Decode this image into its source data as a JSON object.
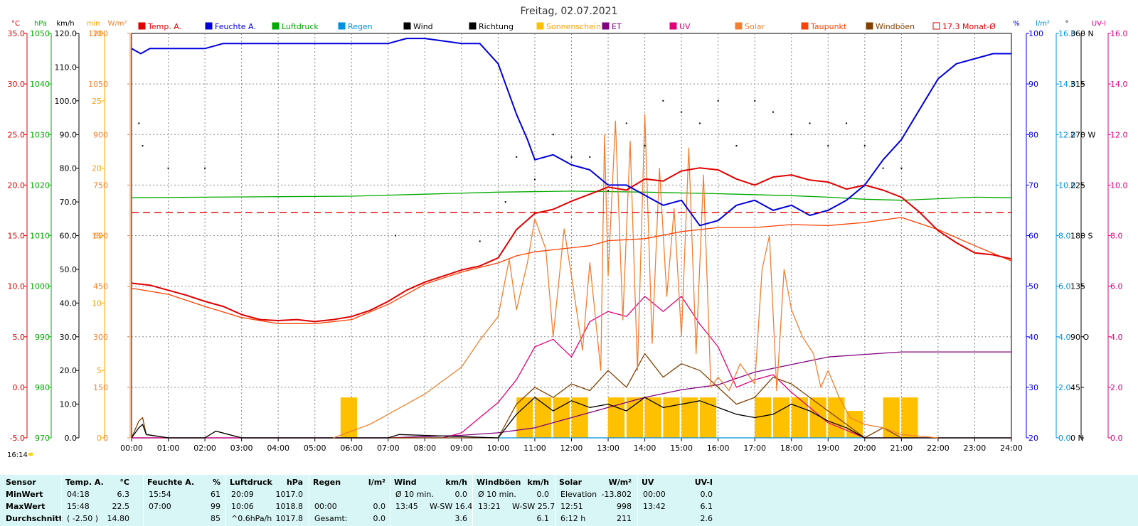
{
  "title": "Freitag, 02.07.2021",
  "time_marker": "16:14",
  "legend": [
    {
      "label": "Temp. A.",
      "color": "#e00000",
      "text_color": "#e00000",
      "filled": true
    },
    {
      "label": "Feuchte A.",
      "color": "#0000dd",
      "text_color": "#0000dd",
      "filled": true
    },
    {
      "label": "Luftdruck",
      "color": "#00aa00",
      "text_color": "#00aa00",
      "filled": true
    },
    {
      "label": "Regen",
      "color": "#0090e0",
      "text_color": "#0090e0",
      "filled": true
    },
    {
      "label": "Wind",
      "color": "#000000",
      "text_color": "#000000",
      "filled": true
    },
    {
      "label": "Richtung",
      "color": "#000000",
      "text_color": "#000000",
      "filled": true
    },
    {
      "label": "Sonnenschein",
      "color": "#ffc000",
      "text_color": "#ffa000",
      "filled": true
    },
    {
      "label": "ET",
      "color": "#800080",
      "text_color": "#800080",
      "filled": true
    },
    {
      "label": "UV",
      "color": "#e0007a",
      "text_color": "#e0007a",
      "filled": true
    },
    {
      "label": "Solar",
      "color": "#f08030",
      "text_color": "#f08030",
      "filled": true
    },
    {
      "label": "Taupunkt",
      "color": "#ff4000",
      "text_color": "#ff4000",
      "filled": true
    },
    {
      "label": "Windböen",
      "color": "#804000",
      "text_color": "#804000",
      "filled": true
    },
    {
      "label": "17.3 Monat-Ø",
      "color": "#e00000",
      "text_color": "#e00000",
      "filled": false
    }
  ],
  "axes": {
    "temp": {
      "unit": "°C",
      "color": "#e00000",
      "ticks": [
        "35.0",
        "30.0",
        "25.0",
        "20.0",
        "15.0",
        "10.0",
        "5.0",
        "0.0",
        "-5.0"
      ]
    },
    "pressure": {
      "unit": "hPa",
      "color": "#00aa00",
      "ticks": [
        "1050",
        "1040",
        "1030",
        "1020",
        "1010",
        "1000",
        "990",
        "980",
        "970"
      ]
    },
    "wind": {
      "unit": "km/h",
      "color": "#000000",
      "ticks": [
        "120.0",
        "110.0",
        "100.0",
        "90.0",
        "80.0",
        "70.0",
        "60.0",
        "50.0",
        "40.0",
        "30.0",
        "20.0",
        "10.0",
        "0.0"
      ]
    },
    "minutes": {
      "unit": "min",
      "color": "#ffa000",
      "ticks": [
        "30",
        "25",
        "20",
        "15",
        "10",
        "5",
        "0"
      ]
    },
    "solar": {
      "unit": "W/m²",
      "color": "#f08030",
      "ticks": [
        "1200",
        "1050",
        "900",
        "750",
        "600",
        "450",
        "300",
        "150",
        "0"
      ]
    },
    "humidity": {
      "unit": "%",
      "color": "#0000dd",
      "ticks": [
        "100",
        "90",
        "80",
        "70",
        "60",
        "50",
        "40",
        "30",
        "20"
      ]
    },
    "rain": {
      "unit": "l/m²",
      "color": "#0090e0",
      "ticks": [
        "16.0",
        "14.0",
        "12.0",
        "10.0",
        "8.0",
        "6.0",
        "4.0",
        "2.0",
        "0.0"
      ]
    },
    "direction": {
      "unit": "°",
      "color": "#000000",
      "ticks": [
        "360 N",
        "315",
        "270 W",
        "225",
        "180 S",
        "135",
        "90 O",
        "45",
        "0 N"
      ]
    },
    "uvi": {
      "unit": "UV-I",
      "color": "#e0007a",
      "ticks": [
        "16.0",
        "14.0",
        "12.0",
        "10.0",
        "8.0",
        "6.0",
        "4.0",
        "2.0",
        "0.0"
      ]
    },
    "time": {
      "ticks": [
        "00:00",
        "01:00",
        "02:00",
        "03:00",
        "04:00",
        "05:00",
        "06:00",
        "07:00",
        "08:00",
        "09:00",
        "10:00",
        "11:00",
        "12:00",
        "13:00",
        "14:00",
        "15:00",
        "16:00",
        "17:00",
        "18:00",
        "19:00",
        "20:00",
        "21:00",
        "22:00",
        "23:00",
        "24:00"
      ]
    }
  },
  "chart_data": {
    "type": "line",
    "title": "Freitag, 02.07.2021",
    "x_unit": "hour of day",
    "xlim": [
      0,
      24
    ],
    "series": [
      {
        "name": "Temp. A.",
        "unit": "°C",
        "color": "#e00000",
        "x": [
          0,
          0.5,
          1,
          1.5,
          2,
          2.5,
          3,
          3.5,
          4,
          4.5,
          5,
          5.5,
          6,
          6.5,
          7,
          7.5,
          8,
          8.5,
          9,
          9.5,
          10,
          10.5,
          11,
          11.5,
          12,
          12.5,
          13,
          13.5,
          14,
          14.5,
          15,
          15.5,
          16,
          16.5,
          17,
          17.5,
          18,
          18.5,
          19,
          19.5,
          20,
          20.5,
          21,
          21.5,
          22,
          22.5,
          23,
          23.5,
          24
        ],
        "y": [
          10.3,
          10.1,
          9.6,
          9.1,
          8.5,
          8.0,
          7.2,
          6.7,
          6.6,
          6.7,
          6.5,
          6.7,
          7.0,
          7.6,
          8.5,
          9.6,
          10.4,
          11.0,
          11.6,
          12.0,
          12.8,
          15.6,
          17.2,
          17.6,
          18.4,
          19.1,
          19.8,
          19.5,
          20.6,
          20.4,
          21.4,
          21.7,
          21.5,
          20.6,
          20.0,
          20.8,
          21.0,
          20.5,
          20.3,
          19.6,
          20.0,
          19.5,
          18.8,
          17.3,
          15.5,
          14.3,
          13.3,
          13.1,
          12.7
        ]
      },
      {
        "name": "Taupunkt",
        "unit": "°C",
        "color": "#ff4000",
        "x": [
          0,
          1,
          2,
          3,
          4,
          5,
          6,
          7,
          8,
          9,
          10,
          10.5,
          11,
          11.5,
          12,
          12.5,
          13,
          14,
          15,
          16,
          17,
          18,
          19,
          20,
          21,
          22,
          23,
          24
        ],
        "y": [
          9.8,
          9.2,
          8.0,
          6.9,
          6.3,
          6.3,
          6.7,
          8.2,
          10.2,
          11.4,
          12.3,
          13.0,
          13.4,
          13.6,
          13.8,
          14.0,
          14.5,
          14.7,
          15.4,
          15.8,
          15.8,
          16.1,
          16.0,
          16.3,
          16.8,
          15.6,
          14.0,
          12.5
        ]
      },
      {
        "name": "Feuchte A.",
        "unit": "%",
        "color": "#0000dd",
        "x": [
          0,
          0.25,
          0.5,
          1,
          1.5,
          2,
          2.5,
          3,
          4,
          5,
          6,
          7,
          7.5,
          8,
          9,
          9.5,
          10,
          10.5,
          10.8,
          11,
          11.5,
          12,
          12.5,
          13,
          13.5,
          14,
          14.5,
          15,
          15.5,
          16,
          16.5,
          17,
          17.5,
          18,
          18.5,
          19,
          19.5,
          20,
          20.5,
          21,
          21.5,
          22,
          22.5,
          23,
          23.5,
          24
        ],
        "y": [
          97,
          96,
          97,
          97,
          97,
          97,
          98,
          98,
          98,
          98,
          98,
          98,
          99,
          99,
          98,
          98,
          94,
          84,
          79,
          75,
          76,
          74,
          73,
          70,
          70,
          68,
          66,
          67,
          62,
          63,
          66,
          67,
          65,
          66,
          64,
          65,
          67,
          70,
          75,
          79,
          85,
          91,
          94,
          95,
          96,
          96
        ]
      },
      {
        "name": "Luftdruck",
        "unit": "hPa",
        "color": "#00aa00",
        "x": [
          0,
          2,
          4,
          6,
          8,
          10,
          12,
          14,
          16,
          18,
          19,
          20,
          21,
          22,
          23,
          24
        ],
        "y": [
          1017.5,
          1017.6,
          1017.7,
          1017.8,
          1018.2,
          1018.6,
          1018.8,
          1018.6,
          1018.3,
          1017.9,
          1017.6,
          1017.2,
          1017.0,
          1017.3,
          1017.6,
          1017.5
        ]
      },
      {
        "name": "Solar",
        "unit": "W/m²",
        "color": "#f08030",
        "x": [
          5.5,
          6,
          6.5,
          7,
          7.5,
          8,
          8.5,
          9,
          9.5,
          10,
          10.3,
          10.5,
          10.8,
          11,
          11.3,
          11.5,
          11.8,
          12,
          12.3,
          12.5,
          12.8,
          12.9,
          13,
          13.2,
          13.4,
          13.6,
          13.8,
          14,
          14.2,
          14.4,
          14.6,
          14.8,
          15,
          15.2,
          15.4,
          15.6,
          15.8,
          16,
          16.3,
          16.6,
          17,
          17.2,
          17.4,
          17.6,
          17.8,
          18,
          18.3,
          18.6,
          18.8,
          19,
          19.3,
          19.6,
          20,
          20.5,
          21,
          21.5,
          22
        ],
        "y": [
          0,
          20,
          40,
          70,
          100,
          130,
          170,
          210,
          290,
          360,
          530,
          380,
          520,
          650,
          560,
          300,
          620,
          480,
          260,
          520,
          200,
          900,
          480,
          940,
          350,
          880,
          200,
          960,
          280,
          800,
          420,
          680,
          300,
          860,
          250,
          780,
          150,
          180,
          140,
          220,
          160,
          500,
          600,
          140,
          500,
          380,
          300,
          250,
          150,
          200,
          120,
          60,
          40,
          30,
          10,
          5,
          0
        ]
      },
      {
        "name": "UV",
        "unit": "UV-I",
        "color": "#e0007a",
        "x": [
          0,
          8.5,
          9,
          9.5,
          10,
          10.5,
          11,
          11.5,
          12,
          12.5,
          13,
          13.5,
          14,
          14.5,
          15,
          15.5,
          16,
          16.5,
          17,
          17.5,
          18,
          18.5,
          19,
          19.5,
          20,
          24
        ],
        "y": [
          0,
          0,
          0.2,
          0.8,
          1.4,
          2.3,
          3.6,
          3.9,
          3.2,
          4.6,
          5.0,
          4.8,
          5.6,
          5.0,
          5.6,
          4.5,
          3.6,
          2.0,
          2.3,
          2.5,
          1.8,
          1.2,
          0.6,
          0.3,
          0,
          0
        ]
      },
      {
        "name": "Wind",
        "unit": "km/h",
        "color": "#000000",
        "x": [
          0,
          0.2,
          0.3,
          0.4,
          1,
          2,
          2.3,
          3,
          7,
          7.3,
          10,
          10.5,
          11,
          11.5,
          12,
          12.5,
          13,
          13.5,
          14,
          14.5,
          15,
          15.5,
          16,
          16.5,
          17,
          17.5,
          18,
          18.5,
          19,
          19.5,
          20,
          24
        ],
        "y": [
          0,
          3,
          4,
          1,
          0,
          0,
          2,
          0,
          0,
          1,
          0,
          7,
          12,
          8,
          11,
          9,
          10,
          8,
          12,
          9,
          10,
          11,
          9,
          7,
          6,
          7,
          10,
          8,
          5,
          3,
          0,
          0
        ]
      },
      {
        "name": "Windböen",
        "unit": "km/h",
        "color": "#804000",
        "x": [
          0,
          0.2,
          0.3,
          0.4,
          1,
          2,
          2.3,
          3,
          10,
          10.5,
          11,
          11.5,
          12,
          12.5,
          13,
          13.5,
          14,
          14.5,
          15,
          15.5,
          16,
          16.5,
          17,
          17.5,
          18,
          18.5,
          19,
          19.5,
          20,
          20.5,
          21,
          24
        ],
        "y": [
          0,
          5,
          6,
          1,
          0,
          0,
          2,
          0,
          0,
          10,
          15,
          12,
          16,
          14,
          20,
          15,
          25,
          18,
          22,
          20,
          15,
          10,
          12,
          18,
          16,
          12,
          8,
          4,
          0,
          3,
          0,
          0
        ]
      },
      {
        "name": "ET",
        "unit": "l/m²",
        "color": "#800080",
        "x": [
          0,
          7,
          8,
          9,
          10,
          11,
          12,
          13,
          14,
          15,
          16,
          17,
          18,
          19,
          20,
          21,
          22,
          23,
          24
        ],
        "y": [
          0,
          0,
          0.05,
          0.1,
          0.2,
          0.4,
          0.8,
          1.2,
          1.6,
          1.9,
          2.1,
          2.6,
          2.9,
          3.2,
          3.3,
          3.4,
          3.4,
          3.4,
          3.4
        ]
      },
      {
        "name": "Regen",
        "unit": "l/m²",
        "color": "#0090e0",
        "x": [
          0,
          24
        ],
        "y": [
          0,
          0
        ]
      },
      {
        "name": "Richtung",
        "unit": "°",
        "color": "#000000",
        "style": "points",
        "x": [
          0.2,
          0.3,
          1,
          2,
          7.2,
          9.5,
          10.2,
          10.5,
          11,
          11.5,
          12,
          12.5,
          13,
          13.5,
          14,
          14.5,
          15,
          15.5,
          16,
          16.5,
          17,
          17.5,
          18,
          18.5,
          19,
          19.5,
          20,
          20.5,
          21
        ],
        "y": [
          280,
          260,
          240,
          240,
          180,
          175,
          210,
          250,
          230,
          270,
          250,
          250,
          220,
          280,
          260,
          300,
          290,
          280,
          300,
          260,
          300,
          290,
          270,
          280,
          260,
          280,
          260,
          240,
          240
        ]
      },
      {
        "name": "Sonnenschein",
        "unit": "min",
        "color": "#ffc000",
        "style": "bars",
        "x": [
          5.7,
          10.5,
          11,
          11.5,
          12,
          13,
          13.5,
          14,
          14.5,
          15,
          15.5,
          17,
          17.5,
          18,
          18.5,
          19,
          19.5,
          20.5,
          21
        ],
        "y": [
          3,
          3,
          3,
          3,
          3,
          3,
          3,
          3,
          3,
          3,
          3,
          3,
          3,
          3,
          3,
          3,
          2,
          3,
          3
        ]
      },
      {
        "name": "17.3 Monat-Ø",
        "unit": "°C",
        "color": "#e00000",
        "style": "dashed",
        "x": [
          0,
          24
        ],
        "y": [
          17.3,
          17.3
        ]
      }
    ]
  },
  "stats": {
    "sensor_label": "Sensor",
    "row_labels": [
      "MinWert",
      "MaxWert",
      "Durchschnitt"
    ],
    "temp": {
      "title": "Temp. A.",
      "unit": "°C",
      "rows": [
        [
          "04:18",
          "6.3"
        ],
        [
          "15:48",
          "22.5"
        ],
        [
          "( -2.50 )",
          "14.80"
        ]
      ]
    },
    "hum": {
      "title": "Feuchte A.",
      "unit": "%",
      "rows": [
        [
          "15:54",
          "61"
        ],
        [
          "07:00",
          "99"
        ],
        [
          "",
          "85"
        ]
      ]
    },
    "press": {
      "title": "Luftdruck",
      "unit": "hPa",
      "rows": [
        [
          "20:09",
          "1017.0"
        ],
        [
          "10:06",
          "1018.8"
        ],
        [
          "^0.6hPa/h",
          "1017.8"
        ]
      ]
    },
    "rain": {
      "title": "Regen",
      "unit": "l/m²",
      "rows": [
        [
          "",
          ""
        ],
        [
          "00:00",
          "0.0"
        ],
        [
          "Gesamt:",
          "0.0"
        ]
      ]
    },
    "wind": {
      "title": "Wind",
      "unit": "km/h",
      "rows": [
        [
          "Ø 10 min.",
          "0.0"
        ],
        [
          "13:45",
          "W-SW 16.4"
        ],
        [
          "",
          "3.6"
        ]
      ]
    },
    "gust": {
      "title": "Windböen",
      "unit": "km/h",
      "rows": [
        [
          "Ø 10 min.",
          "0.0"
        ],
        [
          "13:21",
          "W-SW 25.7"
        ],
        [
          "",
          "6.1"
        ]
      ]
    },
    "solar": {
      "title": "Solar",
      "unit": "W/m²",
      "rows": [
        [
          "Elevation",
          "-13.802"
        ],
        [
          "12:51",
          "998"
        ],
        [
          "6:12 h",
          "211"
        ]
      ]
    },
    "uv": {
      "title": "UV",
      "unit": "UV-I",
      "rows": [
        [
          "00:00",
          "0.0"
        ],
        [
          "13:42",
          "6.1"
        ],
        [
          "",
          "2.6"
        ]
      ]
    }
  }
}
